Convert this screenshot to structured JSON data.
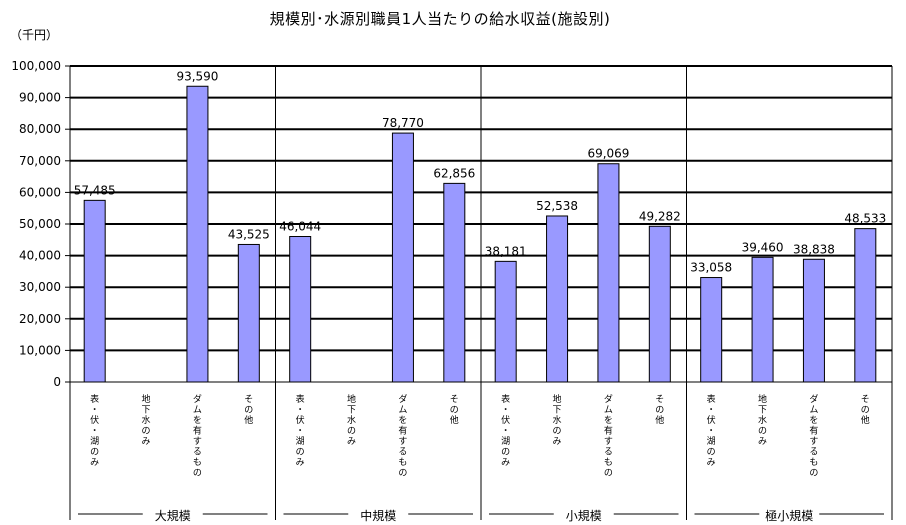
{
  "title": "規模別･水源別職員1人当たりの給水収益(施設別)",
  "unit_label": "（千円）",
  "chart_data": {
    "type": "bar",
    "title": "規模別･水源別職員1人当たりの給水収益(施設別)",
    "ylabel": "（千円）",
    "xlabel": "",
    "ylim": [
      0,
      100000
    ],
    "yticks": [
      "0",
      "10,000",
      "20,000",
      "30,000",
      "40,000",
      "50,000",
      "60,000",
      "70,000",
      "80,000",
      "90,000",
      "100,000"
    ],
    "grid": true,
    "bar_color": "#9999ff",
    "groups": [
      {
        "name": "大規模",
        "categories": [
          "表・伏・湖のみ",
          "地下水のみ",
          "ダムを有するもの",
          "その他"
        ],
        "values": [
          57485,
          null,
          93590,
          43525
        ],
        "labels": [
          "57,485",
          "",
          "93,590",
          "43,525"
        ]
      },
      {
        "name": "中規模",
        "categories": [
          "表・伏・湖のみ",
          "地下水のみ",
          "ダムを有するもの",
          "その他"
        ],
        "values": [
          46044,
          null,
          78770,
          62856
        ],
        "labels": [
          "46,044",
          "",
          "78,770",
          "62,856"
        ]
      },
      {
        "name": "小規模",
        "categories": [
          "表・伏・湖のみ",
          "地下水のみ",
          "ダムを有するもの",
          "その他"
        ],
        "values": [
          38181,
          52538,
          69069,
          49282
        ],
        "labels": [
          "38,181",
          "52,538",
          "69,069",
          "49,282"
        ]
      },
      {
        "name": "極小規模",
        "categories": [
          "表・伏・湖のみ",
          "地下水のみ",
          "ダムを有するもの",
          "その他"
        ],
        "values": [
          33058,
          39460,
          38838,
          48533
        ],
        "labels": [
          "33,058",
          "39,460",
          "38,838",
          "48,533"
        ]
      }
    ]
  }
}
